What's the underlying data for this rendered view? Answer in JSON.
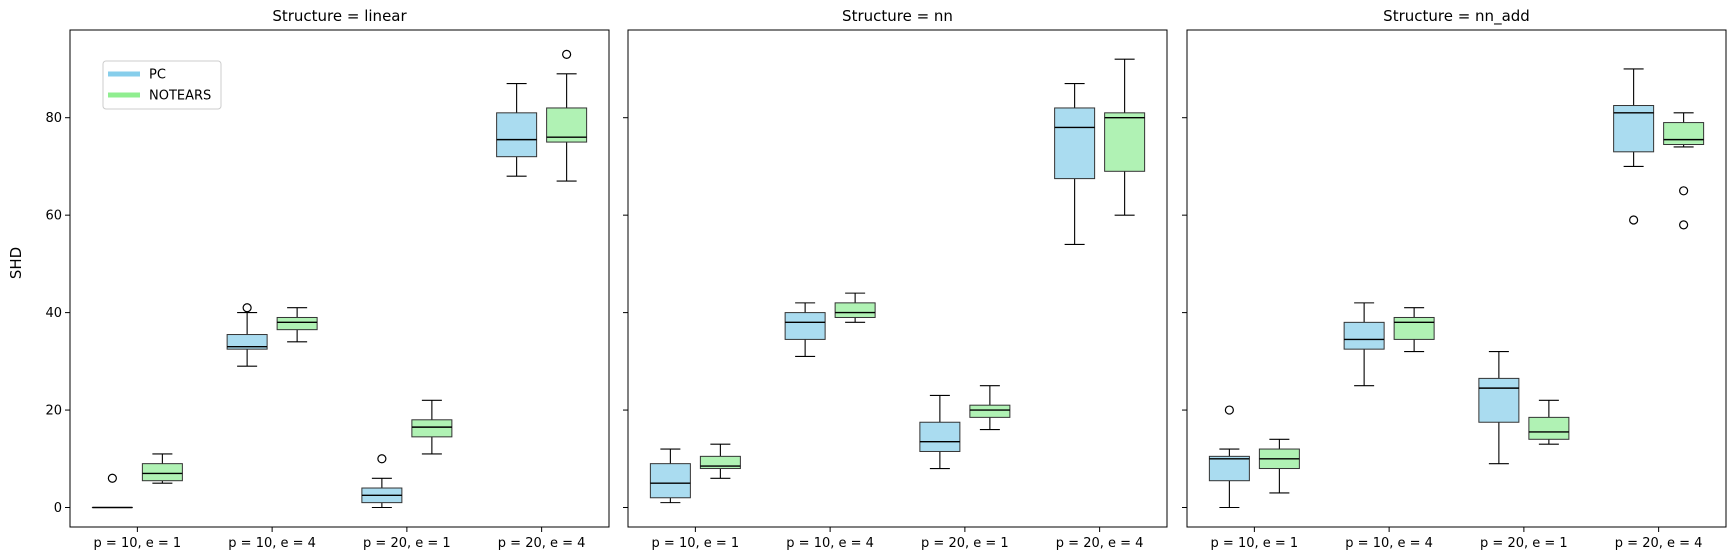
{
  "figure": {
    "ylabel": "SHD"
  },
  "colors": {
    "PC": "#aadcf0",
    "NOTEARS": "#b0f2b4",
    "PC_legend": "#87ceeb",
    "NOTEARS_legend": "#90ee90"
  },
  "legend": {
    "placement": "top-left",
    "entries": [
      "PC",
      "NOTEARS"
    ]
  },
  "chart_data": [
    {
      "type": "box",
      "title": "Structure = linear",
      "xlabel": "",
      "ylabel": "SHD",
      "ylim": [
        -4,
        98
      ],
      "yticks": [
        0,
        20,
        40,
        60,
        80
      ],
      "categories": [
        "p = 10, e = 1",
        "p = 10, e = 4",
        "p = 20, e = 1",
        "p = 20, e = 4"
      ],
      "series": [
        {
          "name": "PC",
          "boxes": [
            {
              "whislo": 0,
              "q1": 0,
              "med": 0,
              "q3": 0,
              "whishi": 0,
              "fliers": [
                6
              ]
            },
            {
              "whislo": 29,
              "q1": 32.5,
              "med": 33,
              "q3": 35.5,
              "whishi": 40,
              "fliers": [
                41
              ]
            },
            {
              "whislo": 0,
              "q1": 1,
              "med": 2.5,
              "q3": 4,
              "whishi": 6,
              "fliers": [
                10
              ]
            },
            {
              "whislo": 68,
              "q1": 72,
              "med": 75.5,
              "q3": 81,
              "whishi": 87,
              "fliers": []
            }
          ]
        },
        {
          "name": "NOTEARS",
          "boxes": [
            {
              "whislo": 5,
              "q1": 5.5,
              "med": 7,
              "q3": 9,
              "whishi": 11,
              "fliers": []
            },
            {
              "whislo": 34,
              "q1": 36.5,
              "med": 38,
              "q3": 39,
              "whishi": 41,
              "fliers": []
            },
            {
              "whislo": 11,
              "q1": 14.5,
              "med": 16.5,
              "q3": 18,
              "whishi": 22,
              "fliers": []
            },
            {
              "whislo": 67,
              "q1": 75,
              "med": 76,
              "q3": 82,
              "whishi": 89,
              "fliers": [
                93
              ]
            }
          ]
        }
      ]
    },
    {
      "type": "box",
      "title": "Structure = nn",
      "xlabel": "",
      "ylabel": "",
      "ylim": [
        -4,
        98
      ],
      "yticks": [
        0,
        20,
        40,
        60,
        80
      ],
      "categories": [
        "p = 10, e = 1",
        "p = 10, e = 4",
        "p = 20, e = 1",
        "p = 20, e = 4"
      ],
      "series": [
        {
          "name": "PC",
          "boxes": [
            {
              "whislo": 1,
              "q1": 2,
              "med": 5,
              "q3": 9,
              "whishi": 12,
              "fliers": []
            },
            {
              "whislo": 31,
              "q1": 34.5,
              "med": 38,
              "q3": 40,
              "whishi": 42,
              "fliers": []
            },
            {
              "whislo": 8,
              "q1": 11.5,
              "med": 13.5,
              "q3": 17.5,
              "whishi": 23,
              "fliers": []
            },
            {
              "whislo": 54,
              "q1": 67.5,
              "med": 78,
              "q3": 82,
              "whishi": 87,
              "fliers": []
            }
          ]
        },
        {
          "name": "NOTEARS",
          "boxes": [
            {
              "whislo": 6,
              "q1": 8,
              "med": 8.5,
              "q3": 10.5,
              "whishi": 13,
              "fliers": []
            },
            {
              "whislo": 38,
              "q1": 39,
              "med": 40,
              "q3": 42,
              "whishi": 44,
              "fliers": []
            },
            {
              "whislo": 16,
              "q1": 18.5,
              "med": 20,
              "q3": 21,
              "whishi": 25,
              "fliers": []
            },
            {
              "whislo": 60,
              "q1": 69,
              "med": 80,
              "q3": 81,
              "whishi": 92,
              "fliers": []
            }
          ]
        }
      ]
    },
    {
      "type": "box",
      "title": "Structure = nn_add",
      "xlabel": "",
      "ylabel": "",
      "ylim": [
        -4,
        98
      ],
      "yticks": [
        0,
        20,
        40,
        60,
        80
      ],
      "categories": [
        "p = 10, e = 1",
        "p = 10, e = 4",
        "p = 20, e = 1",
        "p = 20, e = 4"
      ],
      "series": [
        {
          "name": "PC",
          "boxes": [
            {
              "whislo": 0,
              "q1": 5.5,
              "med": 10,
              "q3": 10.5,
              "whishi": 12,
              "fliers": [
                20
              ]
            },
            {
              "whislo": 25,
              "q1": 32.5,
              "med": 34.5,
              "q3": 38,
              "whishi": 42,
              "fliers": []
            },
            {
              "whislo": 9,
              "q1": 17.5,
              "med": 24.5,
              "q3": 26.5,
              "whishi": 32,
              "fliers": []
            },
            {
              "whislo": 70,
              "q1": 73,
              "med": 81,
              "q3": 82.5,
              "whishi": 90,
              "fliers": [
                59
              ]
            }
          ]
        },
        {
          "name": "NOTEARS",
          "boxes": [
            {
              "whislo": 3,
              "q1": 8,
              "med": 10,
              "q3": 12,
              "whishi": 14,
              "fliers": []
            },
            {
              "whislo": 32,
              "q1": 34.5,
              "med": 38,
              "q3": 39,
              "whishi": 41,
              "fliers": []
            },
            {
              "whislo": 13,
              "q1": 14,
              "med": 15.5,
              "q3": 18.5,
              "whishi": 22,
              "fliers": []
            },
            {
              "whislo": 74,
              "q1": 74.5,
              "med": 75.5,
              "q3": 79,
              "whishi": 81,
              "fliers": [
                65,
                58
              ]
            }
          ]
        }
      ]
    }
  ]
}
